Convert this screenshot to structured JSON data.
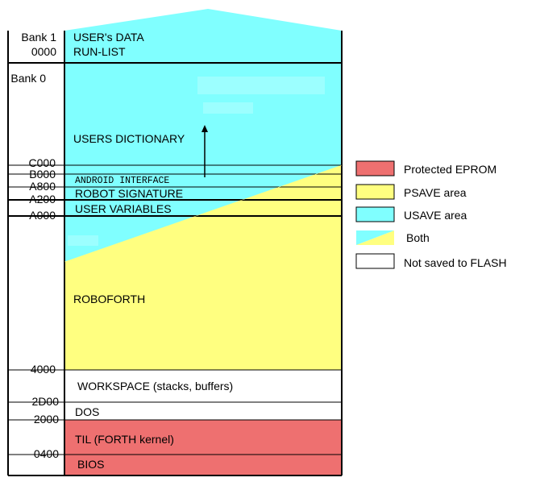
{
  "colors": {
    "protected_eprom": "#EE7070",
    "psave": "#FFFF80",
    "usave": "#80FFFF",
    "not_saved": "#FFFFFF",
    "line": "#000000"
  },
  "bank1": {
    "label": "Bank 1",
    "address": "0000",
    "regions": [
      "USER's DATA",
      "RUN-LIST"
    ]
  },
  "bank0": {
    "label": "Bank 0"
  },
  "addresses": {
    "c000": "C000",
    "b000": "B000",
    "a800": "A800",
    "a200": "A200",
    "a000": "A000",
    "m4000": "4000",
    "m2d00": "2D00",
    "m2000": "2000",
    "m0400": "0400"
  },
  "regions": {
    "users_dictionary": "USERS DICTIONARY",
    "android_interface": "ANDROID INTERFACE",
    "robot_signature": "ROBOT SIGNATURE",
    "user_variables": "USER VARIABLES",
    "roboforth": "ROBOFORTH",
    "workspace": "WORKSPACE (stacks, buffers)",
    "dos": "DOS",
    "til": "TIL (FORTH kernel)",
    "bios": "BIOS"
  },
  "legend": [
    {
      "label": "Protected EPROM",
      "swatch": "protected_eprom"
    },
    {
      "label": "PSAVE area",
      "swatch": "psave"
    },
    {
      "label": "USAVE area",
      "swatch": "usave"
    },
    {
      "label": "Both",
      "swatch": "both"
    },
    {
      "label": "Not saved to FLASH",
      "swatch": "not_saved"
    }
  ]
}
